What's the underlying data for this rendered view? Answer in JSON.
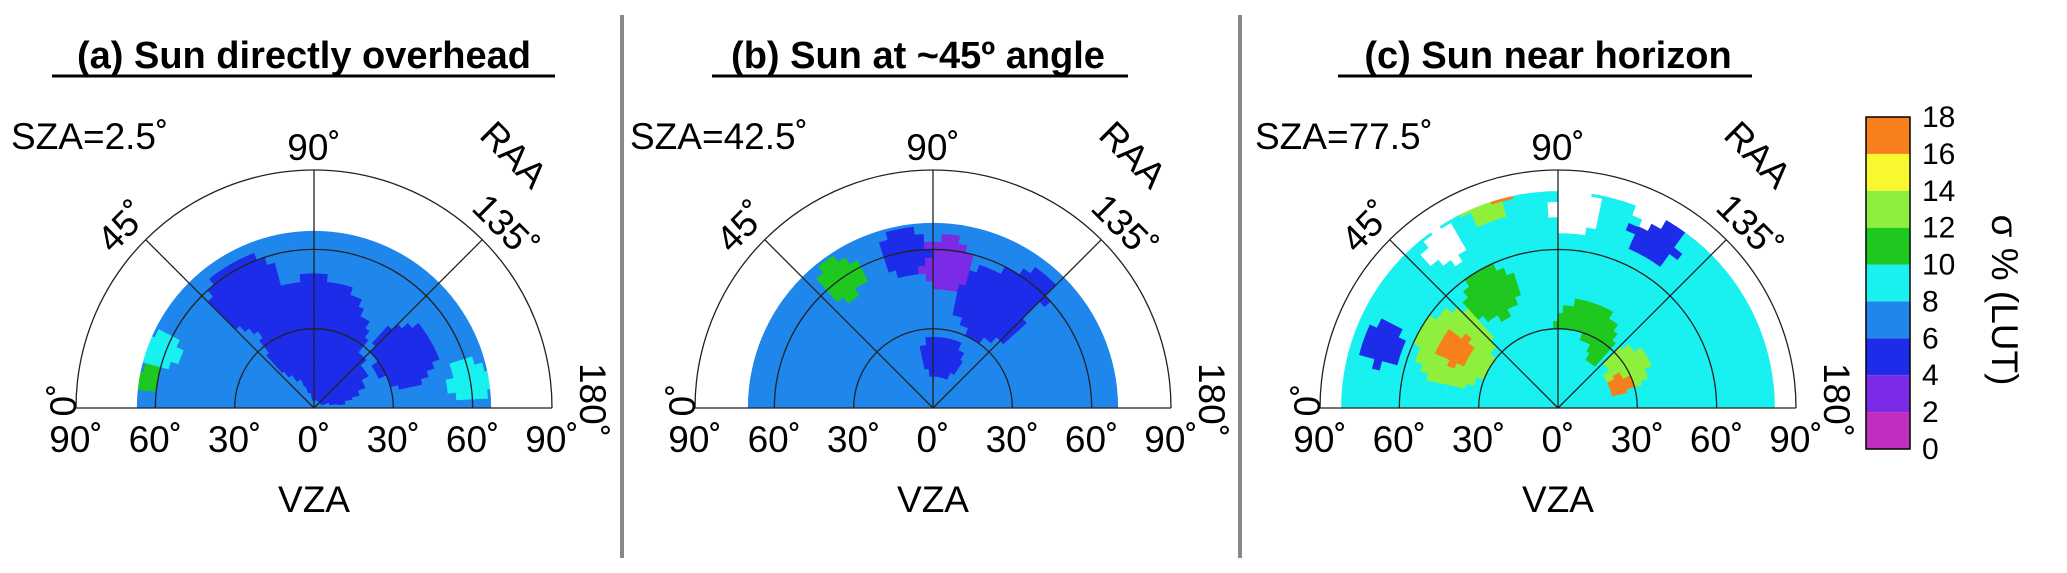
{
  "chart_data": [
    {
      "type": "heatmap",
      "projection": "polar-semicircle",
      "title": "(a) Sun directly overhead",
      "annotation": "SZA=2.5˚",
      "xlabel": "VZA",
      "x_ticks": [
        "90˚",
        "60˚",
        "30˚",
        "0˚",
        "30˚",
        "60˚",
        "90˚"
      ],
      "angle_label": "RAA",
      "angle_ticks": [
        "0˚",
        "45˚",
        "90˚",
        "135˚",
        "180˚"
      ],
      "vza_max": 90,
      "data_extent_vza": 67,
      "background_sigma": 7,
      "blobs": [
        {
          "raa": 90,
          "vza": 30,
          "rad": 20,
          "sigma": 5
        },
        {
          "raa": 150,
          "vza": 40,
          "rad": 12,
          "sigma": 5
        },
        {
          "raa": 60,
          "vza": 50,
          "rad": 14,
          "sigma": 5
        },
        {
          "raa": 120,
          "vza": 15,
          "rad": 12,
          "sigma": 4
        },
        {
          "raa": 20,
          "vza": 62,
          "rad": 7,
          "sigma": 9
        },
        {
          "raa": 170,
          "vza": 60,
          "rad": 8,
          "sigma": 9
        },
        {
          "raa": 10,
          "vza": 64,
          "rad": 5,
          "sigma": 11
        }
      ]
    },
    {
      "type": "heatmap",
      "projection": "polar-semicircle",
      "title": "(b) Sun at ~45º angle",
      "annotation": "SZA=42.5˚",
      "xlabel": "VZA",
      "x_ticks": [
        "90˚",
        "60˚",
        "30˚",
        "0˚",
        "30˚",
        "60˚",
        "90˚"
      ],
      "angle_label": "RAA",
      "angle_ticks": [
        "0˚",
        "45˚",
        "90˚",
        "135˚",
        "180˚"
      ],
      "vza_max": 90,
      "data_extent_vza": 70,
      "background_sigma": 7,
      "blobs": [
        {
          "raa": 95,
          "vza": 55,
          "rad": 10,
          "sigma": 3
        },
        {
          "raa": 80,
          "vza": 60,
          "rad": 9,
          "sigma": 4
        },
        {
          "raa": 120,
          "vza": 45,
          "rad": 14,
          "sigma": 5
        },
        {
          "raa": 55,
          "vza": 60,
          "rad": 8,
          "sigma": 10
        },
        {
          "raa": 130,
          "vza": 60,
          "rad": 7,
          "sigma": 4
        },
        {
          "raa": 100,
          "vza": 20,
          "rad": 8,
          "sigma": 5
        }
      ]
    },
    {
      "type": "heatmap",
      "projection": "polar-semicircle",
      "title": "(c) Sun near horizon",
      "annotation": "SZA=77.5˚",
      "xlabel": "VZA",
      "x_ticks": [
        "90˚",
        "60˚",
        "30˚",
        "0˚",
        "30˚",
        "60˚",
        "90˚"
      ],
      "angle_label": "RAA",
      "angle_ticks": [
        "0˚",
        "45˚",
        "90˚",
        "135˚",
        "180˚"
      ],
      "vza_max": 90,
      "data_extent_vza": 82,
      "background_sigma": 9,
      "blobs": [
        {
          "raa": 30,
          "vza": 45,
          "rad": 15,
          "sigma": 12
        },
        {
          "raa": 30,
          "vza": 45,
          "rad": 6,
          "sigma": 16
        },
        {
          "raa": 60,
          "vza": 50,
          "rad": 10,
          "sigma": 10
        },
        {
          "raa": 110,
          "vza": 30,
          "rad": 12,
          "sigma": 11
        },
        {
          "raa": 150,
          "vza": 30,
          "rad": 8,
          "sigma": 12
        },
        {
          "raa": 160,
          "vza": 25,
          "rad": 4,
          "sigma": 16
        },
        {
          "raa": 70,
          "vza": 82,
          "rad": 8,
          "sigma": 13
        },
        {
          "raa": 75,
          "vza": 82,
          "rad": 3,
          "sigma": 16
        },
        {
          "raa": 120,
          "vza": 75,
          "rad": 10,
          "sigma": 5
        },
        {
          "raa": 20,
          "vza": 70,
          "rad": 8,
          "sigma": 5
        },
        {
          "raa": 140,
          "vza": 60,
          "rad": 10,
          "sigma": 9
        },
        {
          "raa": 95,
          "vza": 20,
          "rad": 10,
          "sigma": 9
        }
      ],
      "gaps": [
        {
          "raa": 55,
          "vza": 75,
          "rad": 8
        },
        {
          "raa": 95,
          "vza": 75,
          "rad": 9
        },
        {
          "raa": 115,
          "vza": 82,
          "rad": 6
        }
      ]
    }
  ],
  "colorbar": {
    "label": "σ % (LUT)",
    "ticks": [
      "0",
      "2",
      "4",
      "6",
      "8",
      "10",
      "12",
      "14",
      "16",
      "18"
    ],
    "bins": [
      {
        "min": 0,
        "max": 2,
        "color": "#c02ec0"
      },
      {
        "min": 2,
        "max": 4,
        "color": "#7b2ae6"
      },
      {
        "min": 4,
        "max": 6,
        "color": "#1c2ce8"
      },
      {
        "min": 6,
        "max": 8,
        "color": "#1f86ec"
      },
      {
        "min": 8,
        "max": 10,
        "color": "#19f0f0"
      },
      {
        "min": 10,
        "max": 12,
        "color": "#1ec81e"
      },
      {
        "min": 12,
        "max": 14,
        "color": "#8ef03c"
      },
      {
        "min": 14,
        "max": 16,
        "color": "#f8f830"
      },
      {
        "min": 16,
        "max": 18,
        "color": "#f8801c"
      }
    ]
  }
}
